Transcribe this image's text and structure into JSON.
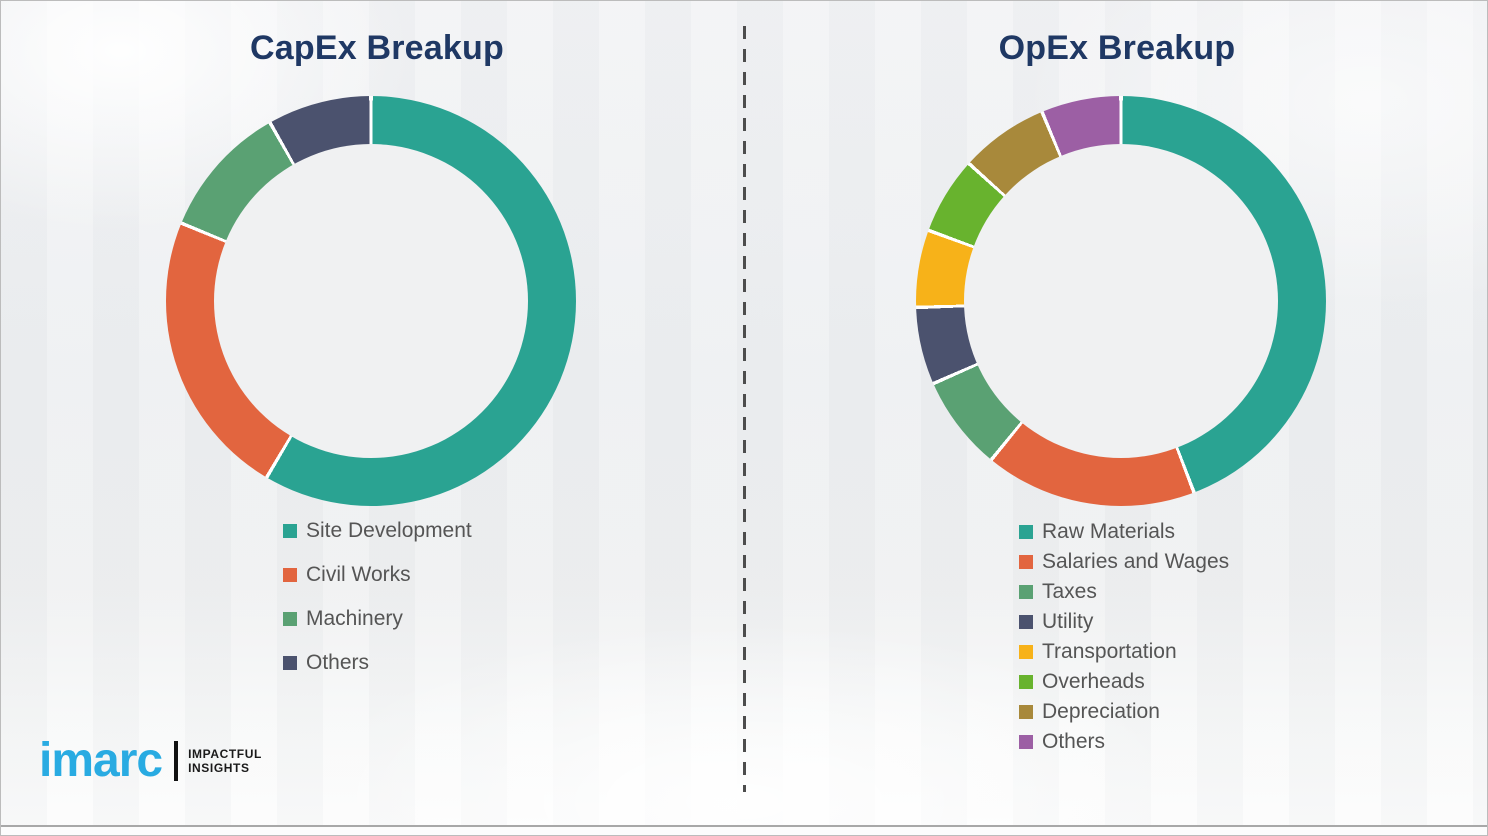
{
  "page": {
    "background_color": "#f0f1f2",
    "title_color": "#1f3864",
    "legend_text_color": "#555555",
    "divider_style": "vertical-dashed-gray"
  },
  "logo": {
    "brand": "imarc",
    "brand_color": "#29abe2",
    "tagline_line1": "IMPACTFUL",
    "tagline_line2": "INSIGHTS"
  },
  "chart_data": [
    {
      "type": "pie",
      "subtype": "donut",
      "title": "CapEx Breakup",
      "units": "percent",
      "start_angle_deg": 0,
      "direction": "clockwise",
      "legend_position": "below-left",
      "categories": [
        "Site Development",
        "Civil Works",
        "Machinery",
        "Others"
      ],
      "values": [
        58.5,
        22.7,
        10.6,
        8.2
      ],
      "colors": [
        "#2aa392",
        "#e2653f",
        "#5aa173",
        "#4b526e"
      ]
    },
    {
      "type": "pie",
      "subtype": "donut",
      "title": "OpEx Breakup",
      "units": "percent",
      "start_angle_deg": 0,
      "direction": "clockwise",
      "legend_position": "below-left",
      "categories": [
        "Raw Materials",
        "Salaries and Wages",
        "Taxes",
        "Utility",
        "Transportation",
        "Overheads",
        "Depreciation",
        "Others"
      ],
      "values": [
        44.2,
        16.7,
        7.5,
        6.1,
        6.1,
        6.1,
        7.0,
        6.3
      ],
      "colors": [
        "#2aa392",
        "#e2653f",
        "#5aa173",
        "#4b526e",
        "#f7b219",
        "#68b32e",
        "#a8893b",
        "#9c5fa4"
      ]
    }
  ]
}
